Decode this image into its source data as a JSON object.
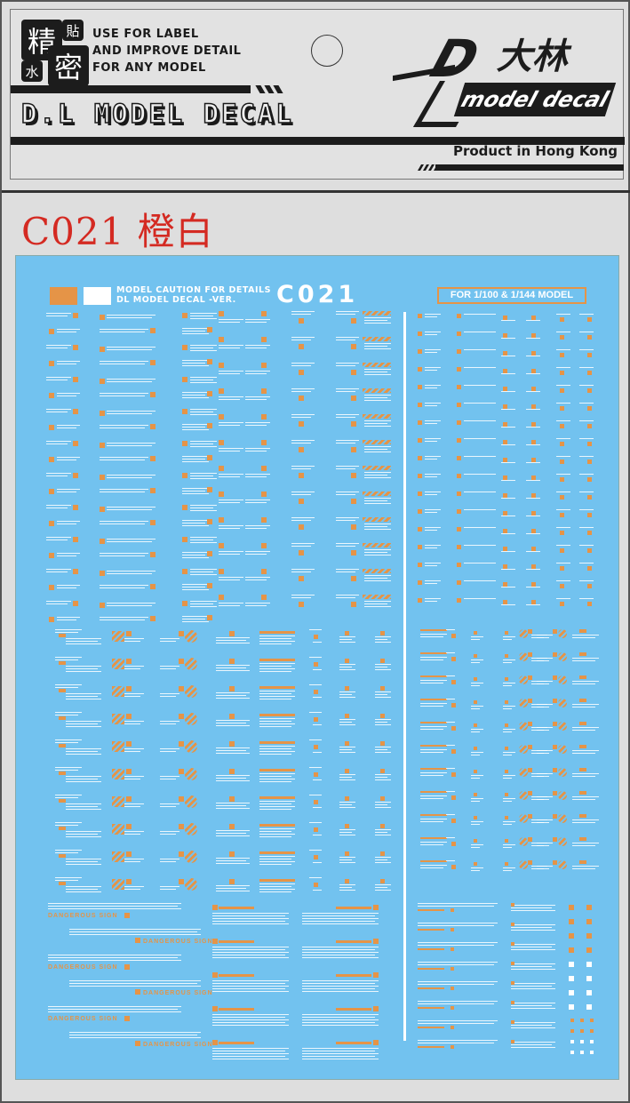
{
  "header": {
    "kanji": [
      "精",
      "貼",
      "水",
      "密"
    ],
    "tagline": [
      "USE FOR LABEL",
      "AND IMPROVE DETAIL",
      "FOR ANY MODEL"
    ],
    "brand_title": "D.L MODEL DECAL",
    "logo": {
      "letter": "D",
      "chinese": "大林",
      "subtitle": "model decal"
    },
    "origin": "Product in Hong Kong"
  },
  "product_code_label": "C021 橙白",
  "sheet": {
    "colors": {
      "background": "#72c2ef",
      "orange": "#e59447",
      "white": "#ffffff"
    },
    "title_lines": [
      "MODEL CAUTION FOR DETAILS",
      "DL MODEL DECAL -VER."
    ],
    "code": "C021",
    "scale_label": "FOR 1/100 & 1/144 MODEL",
    "warning_text": "DANGEROUS SIGN"
  }
}
